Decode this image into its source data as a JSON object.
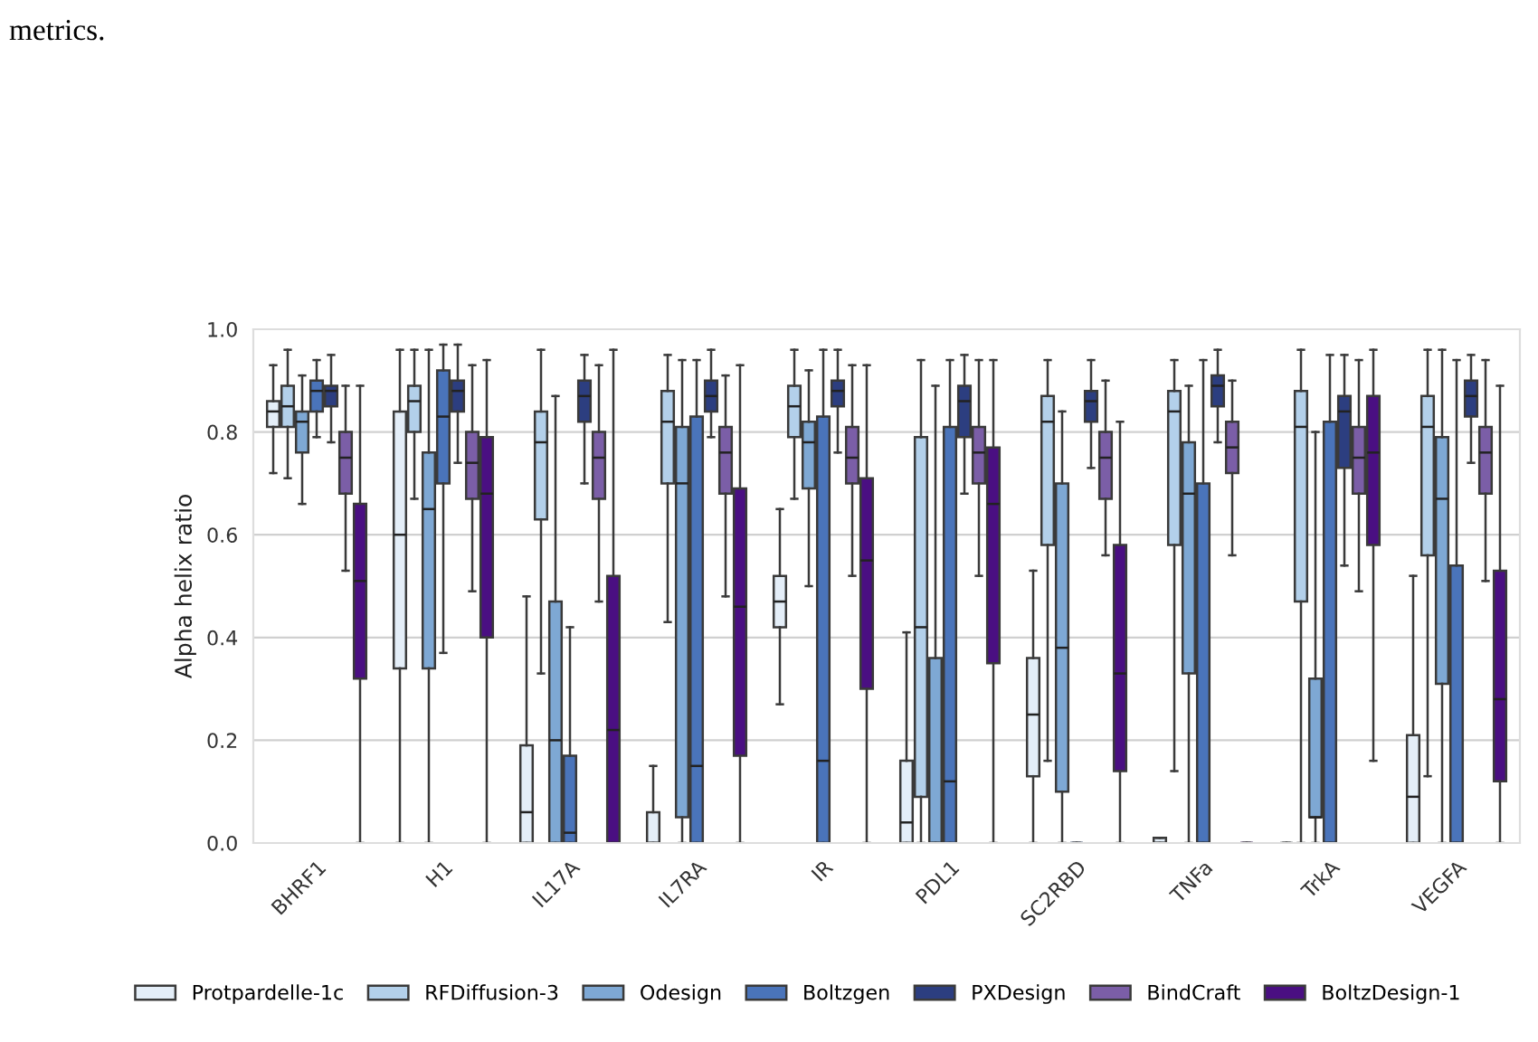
{
  "chart_data": {
    "type": "box",
    "ylabel": "Alpha helix ratio",
    "annotations": [
      "metrics."
    ],
    "categories": [
      "BHRF1",
      "H1",
      "IL17A",
      "IL7RA",
      "IR",
      "PDL1",
      "SC2RBD",
      "TNFa",
      "TrkA",
      "VEGFA"
    ],
    "ylim": [
      0,
      1.0
    ],
    "yticks": [
      {
        "value": 0,
        "label": "0.0"
      },
      {
        "value": 0.2,
        "label": "0.2"
      },
      {
        "value": 0.4,
        "label": "0.4"
      },
      {
        "value": 0.6,
        "label": "0.6"
      },
      {
        "value": 0.8,
        "label": "0.8"
      },
      {
        "value": 1.0,
        "label": "1.0"
      }
    ],
    "grid": "y",
    "legend": "bottom",
    "series": [
      {
        "name": "Protpardelle-1c",
        "color": "#e4eef8",
        "boxes": [
          {
            "low": 0.72,
            "q1": 0.81,
            "median": 0.84,
            "q3": 0.86,
            "high": 0.93
          },
          {
            "low": 0,
            "q1": 0.34,
            "median": 0.6,
            "q3": 0.84,
            "high": 0.96
          },
          {
            "low": 0,
            "q1": 0,
            "median": 0.06,
            "q3": 0.19,
            "high": 0.48
          },
          {
            "low": 0,
            "q1": 0,
            "median": 0,
            "q3": 0.06,
            "high": 0.15
          },
          {
            "low": 0.27,
            "q1": 0.42,
            "median": 0.47,
            "q3": 0.52,
            "high": 0.65
          },
          {
            "low": 0,
            "q1": 0,
            "median": 0.04,
            "q3": 0.16,
            "high": 0.41
          },
          {
            "low": 0,
            "q1": 0.13,
            "median": 0.25,
            "q3": 0.36,
            "high": 0.53
          },
          {
            "low": 0,
            "q1": 0,
            "median": 0,
            "q3": 0.01,
            "high": 0.01
          },
          {
            "low": 0,
            "q1": 0,
            "median": 0,
            "q3": 0,
            "high": 0
          },
          {
            "low": 0,
            "q1": 0,
            "median": 0.09,
            "q3": 0.21,
            "high": 0.52
          }
        ]
      },
      {
        "name": "RFDiffusion-3",
        "color": "#b3d0ea",
        "boxes": [
          {
            "low": 0.71,
            "q1": 0.81,
            "median": 0.85,
            "q3": 0.89,
            "high": 0.96
          },
          {
            "low": 0.67,
            "q1": 0.8,
            "median": 0.86,
            "q3": 0.89,
            "high": 0.96
          },
          {
            "low": 0.33,
            "q1": 0.63,
            "median": 0.78,
            "q3": 0.84,
            "high": 0.96
          },
          {
            "low": 0.43,
            "q1": 0.7,
            "median": 0.82,
            "q3": 0.88,
            "high": 0.95
          },
          {
            "low": 0.67,
            "q1": 0.79,
            "median": 0.85,
            "q3": 0.89,
            "high": 0.96
          },
          {
            "low": 0,
            "q1": 0.09,
            "median": 0.42,
            "q3": 0.79,
            "high": 0.94
          },
          {
            "low": 0.16,
            "q1": 0.58,
            "median": 0.82,
            "q3": 0.87,
            "high": 0.94
          },
          {
            "low": 0.14,
            "q1": 0.58,
            "median": 0.84,
            "q3": 0.88,
            "high": 0.94
          },
          {
            "low": 0,
            "q1": 0.47,
            "median": 0.81,
            "q3": 0.88,
            "high": 0.96
          },
          {
            "low": 0.13,
            "q1": 0.56,
            "median": 0.81,
            "q3": 0.87,
            "high": 0.96
          }
        ]
      },
      {
        "name": "Odesign",
        "color": "#7ea8d4",
        "boxes": [
          {
            "low": 0.66,
            "q1": 0.76,
            "median": 0.82,
            "q3": 0.84,
            "high": 0.91
          },
          {
            "low": 0,
            "q1": 0.34,
            "median": 0.65,
            "q3": 0.76,
            "high": 0.96
          },
          {
            "low": 0,
            "q1": 0,
            "median": 0.2,
            "q3": 0.47,
            "high": 0.87
          },
          {
            "low": 0,
            "q1": 0.05,
            "median": 0.7,
            "q3": 0.81,
            "high": 0.94
          },
          {
            "low": 0.5,
            "q1": 0.69,
            "median": 0.78,
            "q3": 0.82,
            "high": 0.92
          },
          {
            "low": 0,
            "q1": 0,
            "median": 0,
            "q3": 0.36,
            "high": 0.89
          },
          {
            "low": 0,
            "q1": 0.1,
            "median": 0.38,
            "q3": 0.7,
            "high": 0.84
          },
          {
            "low": 0,
            "q1": 0.33,
            "median": 0.68,
            "q3": 0.78,
            "high": 0.89
          },
          {
            "low": 0,
            "q1": 0.05,
            "median": 0.05,
            "q3": 0.32,
            "high": 0.8
          },
          {
            "low": 0,
            "q1": 0.31,
            "median": 0.67,
            "q3": 0.79,
            "high": 0.96
          }
        ]
      },
      {
        "name": "Boltzgen",
        "color": "#4a74ba",
        "boxes": [
          {
            "low": 0.79,
            "q1": 0.84,
            "median": 0.88,
            "q3": 0.9,
            "high": 0.94
          },
          {
            "low": 0.37,
            "q1": 0.7,
            "median": 0.83,
            "q3": 0.92,
            "high": 0.97
          },
          {
            "low": 0,
            "q1": 0,
            "median": 0.02,
            "q3": 0.17,
            "high": 0.42
          },
          {
            "low": 0,
            "q1": 0,
            "median": 0.15,
            "q3": 0.83,
            "high": 0.94
          },
          {
            "low": 0,
            "q1": 0,
            "median": 0.16,
            "q3": 0.83,
            "high": 0.96
          },
          {
            "low": 0,
            "q1": 0,
            "median": 0.12,
            "q3": 0.81,
            "high": 0.94
          },
          {
            "low": 0,
            "q1": 0,
            "median": 0,
            "q3": 0,
            "high": 0
          },
          {
            "low": 0,
            "q1": 0,
            "median": 0,
            "q3": 0.7,
            "high": 0.94
          },
          {
            "low": 0,
            "q1": 0,
            "median": 0,
            "q3": 0.82,
            "high": 0.95
          },
          {
            "low": 0,
            "q1": 0,
            "median": 0,
            "q3": 0.54,
            "high": 0.94
          }
        ]
      },
      {
        "name": "PXDesign",
        "color": "#2c3e80",
        "boxes": [
          {
            "low": 0.78,
            "q1": 0.85,
            "median": 0.88,
            "q3": 0.89,
            "high": 0.95
          },
          {
            "low": 0.74,
            "q1": 0.84,
            "median": 0.88,
            "q3": 0.9,
            "high": 0.97
          },
          {
            "low": 0.7,
            "q1": 0.82,
            "median": 0.87,
            "q3": 0.9,
            "high": 0.95
          },
          {
            "low": 0.79,
            "q1": 0.84,
            "median": 0.87,
            "q3": 0.9,
            "high": 0.96
          },
          {
            "low": 0.76,
            "q1": 0.85,
            "median": 0.88,
            "q3": 0.9,
            "high": 0.96
          },
          {
            "low": 0.68,
            "q1": 0.79,
            "median": 0.86,
            "q3": 0.89,
            "high": 0.95
          },
          {
            "low": 0.73,
            "q1": 0.82,
            "median": 0.86,
            "q3": 0.88,
            "high": 0.94
          },
          {
            "low": 0.78,
            "q1": 0.85,
            "median": 0.89,
            "q3": 0.91,
            "high": 0.96
          },
          {
            "low": 0.54,
            "q1": 0.73,
            "median": 0.84,
            "q3": 0.87,
            "high": 0.95
          },
          {
            "low": 0.74,
            "q1": 0.83,
            "median": 0.87,
            "q3": 0.9,
            "high": 0.95
          }
        ]
      },
      {
        "name": "BindCraft",
        "color": "#7b5ea7",
        "boxes": [
          {
            "low": 0.53,
            "q1": 0.68,
            "median": 0.75,
            "q3": 0.8,
            "high": 0.89
          },
          {
            "low": 0.49,
            "q1": 0.67,
            "median": 0.74,
            "q3": 0.8,
            "high": 0.93
          },
          {
            "low": 0.47,
            "q1": 0.67,
            "median": 0.75,
            "q3": 0.8,
            "high": 0.93
          },
          {
            "low": 0.48,
            "q1": 0.68,
            "median": 0.76,
            "q3": 0.81,
            "high": 0.91
          },
          {
            "low": 0.52,
            "q1": 0.7,
            "median": 0.75,
            "q3": 0.81,
            "high": 0.93
          },
          {
            "low": 0.52,
            "q1": 0.7,
            "median": 0.76,
            "q3": 0.81,
            "high": 0.94
          },
          {
            "low": 0.56,
            "q1": 0.67,
            "median": 0.75,
            "q3": 0.8,
            "high": 0.9
          },
          {
            "low": 0.56,
            "q1": 0.72,
            "median": 0.77,
            "q3": 0.82,
            "high": 0.9
          },
          {
            "low": 0.49,
            "q1": 0.68,
            "median": 0.75,
            "q3": 0.81,
            "high": 0.94
          },
          {
            "low": 0.51,
            "q1": 0.68,
            "median": 0.76,
            "q3": 0.81,
            "high": 0.94
          }
        ]
      },
      {
        "name": "BoltzDesign-1",
        "color": "#4a0f82",
        "boxes": [
          {
            "low": 0,
            "q1": 0.32,
            "median": 0.51,
            "q3": 0.66,
            "high": 0.89
          },
          {
            "low": 0,
            "q1": 0.4,
            "median": 0.68,
            "q3": 0.79,
            "high": 0.94
          },
          {
            "low": 0,
            "q1": 0,
            "median": 0.22,
            "q3": 0.52,
            "high": 0.96
          },
          {
            "low": 0,
            "q1": 0.17,
            "median": 0.46,
            "q3": 0.69,
            "high": 0.93
          },
          {
            "low": 0,
            "q1": 0.3,
            "median": 0.55,
            "q3": 0.71,
            "high": 0.93
          },
          {
            "low": 0,
            "q1": 0.35,
            "median": 0.66,
            "q3": 0.77,
            "high": 0.94
          },
          {
            "low": 0,
            "q1": 0.14,
            "median": 0.33,
            "q3": 0.58,
            "high": 0.82
          },
          {
            "low": 0,
            "q1": 0,
            "median": 0,
            "q3": 0,
            "high": 0
          },
          {
            "low": 0.16,
            "q1": 0.58,
            "median": 0.76,
            "q3": 0.87,
            "high": 0.96
          },
          {
            "low": 0,
            "q1": 0.12,
            "median": 0.28,
            "q3": 0.53,
            "high": 0.89
          }
        ]
      }
    ]
  }
}
